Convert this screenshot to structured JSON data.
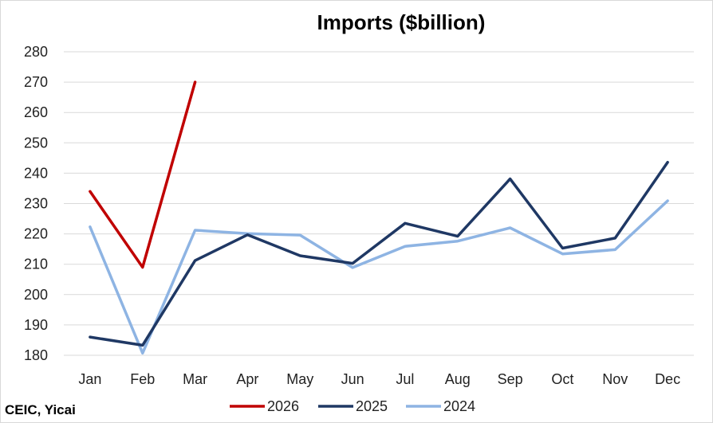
{
  "chart_data": {
    "type": "line",
    "title": "Imports ($billion)",
    "xlabel": "",
    "ylabel": "",
    "categories": [
      "Jan",
      "Feb",
      "Mar",
      "Apr",
      "May",
      "Jun",
      "Jul",
      "Aug",
      "Sep",
      "Oct",
      "Nov",
      "Dec"
    ],
    "ylim": [
      180,
      280
    ],
    "yticks": [
      "180",
      "190",
      "200",
      "210",
      "220",
      "230",
      "240",
      "250",
      "260",
      "270",
      "280"
    ],
    "grid": true,
    "legend_position": "bottom",
    "series": [
      {
        "name": "2026",
        "color": "#c00000",
        "values": [
          234,
          209,
          270,
          null,
          null,
          null,
          null,
          null,
          null,
          null,
          null,
          null
        ]
      },
      {
        "name": "2025",
        "color": "#1f3864",
        "values": [
          186,
          183.3,
          211.2,
          219.7,
          212.8,
          210.3,
          223.5,
          219.2,
          238.1,
          215.3,
          218.6,
          243.6
        ]
      },
      {
        "name": "2024",
        "color": "#8eb4e3",
        "values": [
          222.3,
          180.7,
          221.2,
          220.1,
          219.6,
          208.9,
          215.9,
          217.6,
          222,
          213.4,
          214.8,
          230.9
        ]
      }
    ],
    "source": "CEIC, Yicai"
  }
}
